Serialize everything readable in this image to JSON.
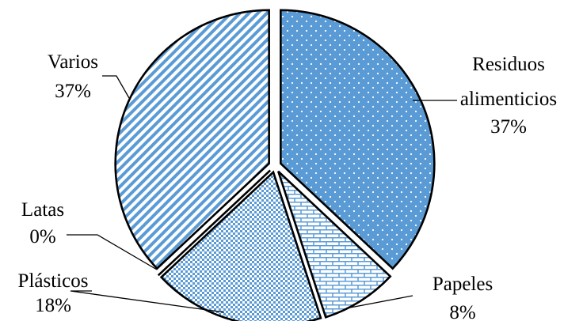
{
  "chart_data": {
    "type": "pie",
    "start_angle_deg": 0,
    "direction": "clockwise",
    "exploded": true,
    "slices": [
      {
        "label_lines": [
          "Residuos",
          "alimenticios"
        ],
        "value": 37,
        "percent_text": "37%",
        "color": "#5b9bd5",
        "pattern": "dots"
      },
      {
        "label_lines": [
          "Papeles"
        ],
        "value": 8,
        "percent_text": "8%",
        "color": "#5b9bd5",
        "pattern": "bricks"
      },
      {
        "label_lines": [
          "Plásticos"
        ],
        "value": 18,
        "percent_text": "18%",
        "color": "#5b9bd5",
        "pattern": "checker"
      },
      {
        "label_lines": [
          "Latas"
        ],
        "value": 0,
        "percent_text": "0%",
        "color": "#5b9bd5",
        "pattern": "solid"
      },
      {
        "label_lines": [
          "Varios"
        ],
        "value": 37,
        "percent_text": "37%",
        "color": "#5b9bd5",
        "pattern": "diagonal"
      }
    ]
  }
}
